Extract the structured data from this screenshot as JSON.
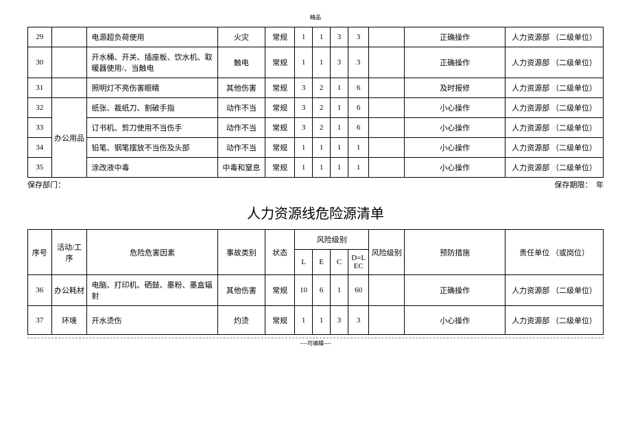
{
  "topLabel": "精品",
  "bottomLabel": "----可编辑----",
  "title": "人力资源线危险源清单",
  "footer": {
    "left": "保存部门：",
    "right": "保存期限：　年"
  },
  "table1": {
    "rows": [
      {
        "seq": "29",
        "act": "",
        "factor": "电源超负荷使用",
        "type": "火灾",
        "state": "常规",
        "l": "1",
        "e": "1",
        "c": "3",
        "d": "3",
        "risk": "",
        "prevent": "正确操作",
        "resp": "人力资源部 （二级单位）"
      },
      {
        "seq": "30",
        "act": "",
        "factor": "开水桶、开关、插座板、饮水机、取暖器使用/、当触电",
        "type": "触电",
        "state": "常规",
        "l": "1",
        "e": "1",
        "c": "3",
        "d": "3",
        "risk": "",
        "prevent": "正确操作",
        "resp": "人力资源部 （二级单位）"
      },
      {
        "seq": "31",
        "act": "",
        "factor": "照明灯不亮伤害眼睛",
        "type": "其他伤害",
        "state": "常规",
        "l": "3",
        "e": "2",
        "c": "1",
        "d": "6",
        "risk": "",
        "prevent": "及时报修",
        "resp": "人力资源部 （二级单位）"
      },
      {
        "seq": "32",
        "act": "办公用品",
        "factor": "纸张、裁纸刀、割破手指",
        "type": "动作不当",
        "state": "常规",
        "l": "3",
        "e": "2",
        "c": "1",
        "d": "6",
        "risk": "",
        "prevent": "小心操作",
        "resp": "人力资源部 （二级单位）",
        "rowspan": 4
      },
      {
        "seq": "33",
        "factor": "订书机、剪刀使用不当伤手",
        "type": "动作不当",
        "state": "常规",
        "l": "3",
        "e": "2",
        "c": "1",
        "d": "6",
        "risk": "",
        "prevent": "小心操作",
        "resp": "人力资源部 （二级单位）"
      },
      {
        "seq": "34",
        "factor": "铅笔、钢笔摆放不当伤及头部",
        "type": "动作不当",
        "state": "常规",
        "l": "1",
        "e": "1",
        "c": "1",
        "d": "1",
        "risk": "",
        "prevent": "小心操作",
        "resp": "人力资源部 （二级单位）"
      },
      {
        "seq": "35",
        "factor": "涂改液中毒",
        "type": "中毒和窒息",
        "state": "常规",
        "l": "1",
        "e": "1",
        "c": "1",
        "d": "1",
        "risk": "",
        "prevent": "小心操作",
        "resp": "人力资源部 （二级单位）"
      }
    ]
  },
  "table2": {
    "headers": {
      "seq": "序号",
      "act": "活动/工序",
      "factor": "危险危害因素",
      "type": "事故类别",
      "state": "状态",
      "riskGroup": "风险级别",
      "l": "L",
      "e": "E",
      "c": "C",
      "d": "D=LEC",
      "risk": "风险级别",
      "prevent": "预防措施",
      "resp": "责任单位 （或岗位）"
    },
    "rows": [
      {
        "seq": "36",
        "act": "办公耗材",
        "factor": "电脑、打印机、硒鼓、墨粉、墨盒辐射",
        "type": "其他伤害",
        "state": "常规",
        "l": "10",
        "e": "6",
        "c": "1",
        "d": "60",
        "risk": "",
        "prevent": "正确操作",
        "resp": "人力资源部 （二级单位）"
      },
      {
        "seq": "37",
        "act": "环境",
        "factor": "开水烫伤",
        "type": "灼烫",
        "state": "常规",
        "l": "1",
        "e": "1",
        "c": "3",
        "d": "3",
        "risk": "",
        "prevent": "小心操作",
        "resp": "人力资源部 （二级单位）"
      }
    ]
  }
}
